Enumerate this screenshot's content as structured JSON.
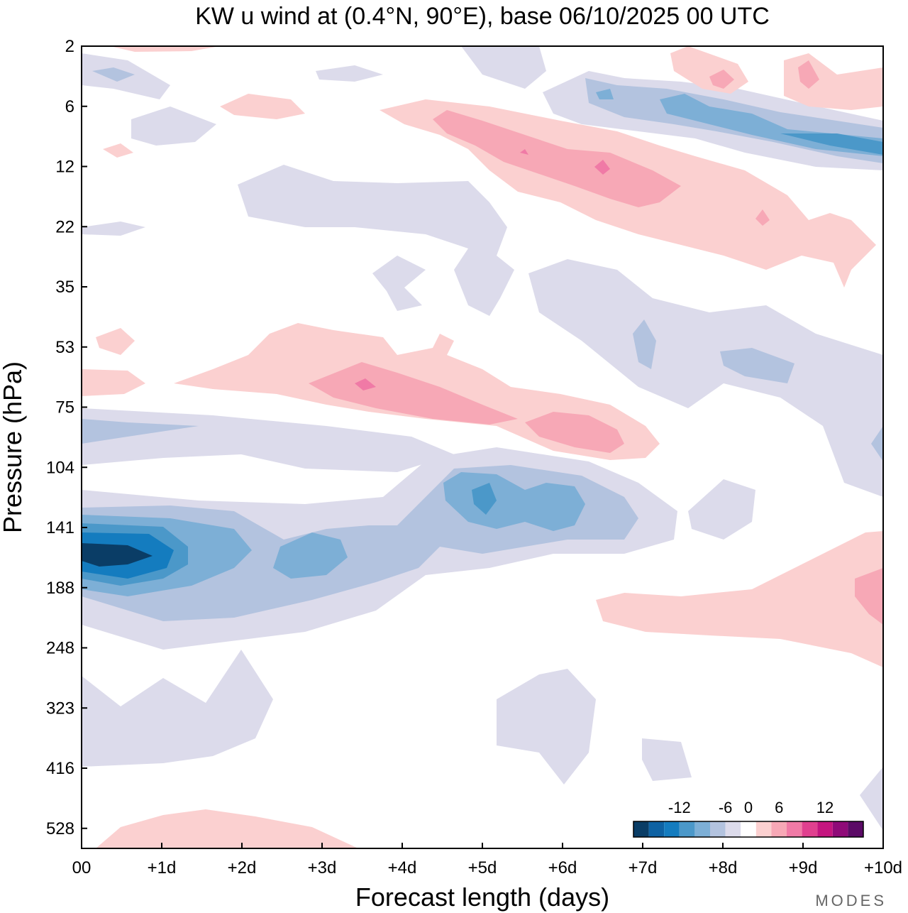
{
  "chart_data": {
    "type": "heatmap",
    "title": "KW u wind at (0.4°N, 90°E),  base 06/10/2025  00 UTC",
    "xlabel": "Forecast length (days)",
    "ylabel": "Pressure (hPa)",
    "x_ticks": [
      "00",
      "+1d",
      "+2d",
      "+3d",
      "+4d",
      "+5d",
      "+6d",
      "+7d",
      "+8d",
      "+9d",
      "+10d"
    ],
    "y_ticks": [
      "2",
      "6",
      "12",
      "22",
      "35",
      "53",
      "75",
      "104",
      "141",
      "188",
      "248",
      "323",
      "416",
      "528"
    ],
    "xlim": [
      0,
      10
    ],
    "ylim": [
      "2",
      "600"
    ],
    "colorbar": {
      "tick_labels": [
        "-12",
        "-6",
        "0",
        "6",
        "12"
      ],
      "levels": [
        -16,
        -14,
        -12,
        -10,
        -8,
        -6,
        -4,
        -2,
        2,
        4,
        6,
        8,
        10,
        12,
        14,
        16
      ],
      "colors": [
        "#0a3d66",
        "#0e62a3",
        "#147cbf",
        "#4b98c9",
        "#7dafd6",
        "#b3c3df",
        "#dcdbeb",
        "#ffffff",
        "#fbd0d0",
        "#f7a8b6",
        "#f07aa6",
        "#e0408f",
        "#c4157f",
        "#8f0a78",
        "#5b0a66"
      ]
    },
    "features": [
      {
        "name": "upper-trop-easterly-max",
        "sign": "negative",
        "peak_u": -15,
        "day_range": [
          0,
          4.3
        ],
        "pressure_range": [
          110,
          240
        ],
        "peak_day": 0.5,
        "peak_pressure": 160
      },
      {
        "name": "easterly-band-day5-6",
        "sign": "negative",
        "peak_u": -10,
        "day_range": [
          4.3,
          7.3
        ],
        "pressure_range": [
          100,
          170
        ],
        "peak_day": 5,
        "peak_pressure": 128
      },
      {
        "name": "lower-strat-westerly",
        "sign": "positive",
        "peak_u": 7,
        "day_range": [
          1.2,
          7.2
        ],
        "pressure_range": [
          45,
          100
        ],
        "peak_day": 3.5,
        "peak_pressure": 64
      },
      {
        "name": "upper-strat-westerly",
        "sign": "positive",
        "peak_u": 7,
        "day_range": [
          3.5,
          10
        ],
        "pressure_range": [
          6,
          40
        ],
        "peak_day": 6.5,
        "peak_pressure": 13
      },
      {
        "name": "upper-strat-easterly",
        "sign": "negative",
        "peak_u": -8,
        "day_range": [
          6,
          10
        ],
        "pressure_range": [
          4,
          14
        ],
        "peak_day": 9.6,
        "peak_pressure": 10
      }
    ]
  },
  "branding": {
    "logo_text": "MODES"
  }
}
